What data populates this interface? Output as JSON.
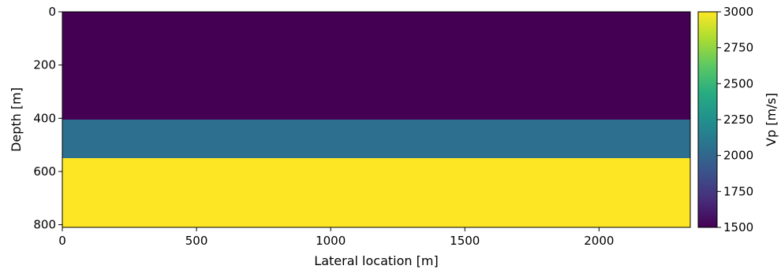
{
  "chart_data": {
    "type": "heatmap",
    "xlabel": "Lateral location [m]",
    "ylabel": "Depth [m]",
    "xlim": [
      0,
      2340
    ],
    "ylim": [
      810,
      0
    ],
    "xticks": [
      0,
      500,
      1000,
      1500,
      2000
    ],
    "xtick_labels": [
      "0",
      "500",
      "1000",
      "1500",
      "2000"
    ],
    "yticks": [
      0,
      200,
      400,
      600,
      800
    ],
    "ytick_labels": [
      "0",
      "200",
      "400",
      "600",
      "800"
    ],
    "layers": [
      {
        "depth_top": 0,
        "depth_bottom": 405,
        "vp": 1500
      },
      {
        "depth_top": 405,
        "depth_bottom": 550,
        "vp": 2050
      },
      {
        "depth_top": 550,
        "depth_bottom": 810,
        "vp": 3000
      }
    ],
    "colorbar": {
      "label": "Vp [m/s]",
      "colormap": "viridis",
      "range": [
        1500,
        3000
      ],
      "ticks": [
        1500,
        1750,
        2000,
        2250,
        2500,
        2750,
        3000
      ],
      "tick_labels": [
        "1500",
        "1750",
        "2000",
        "2250",
        "2500",
        "2750",
        "3000"
      ]
    }
  }
}
